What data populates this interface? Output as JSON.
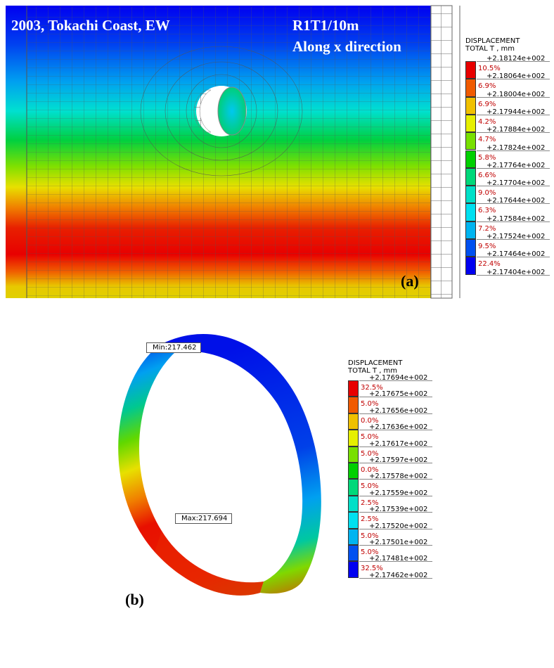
{
  "panel_a": {
    "title_left": "2003, Tokachi Coast, EW",
    "title_right_1": "R1T1/10m",
    "title_right_2": "Along x direction",
    "label": "(a)",
    "legend": {
      "heading_1": "DISPLACEMENT",
      "heading_2": "TOTAL T , mm",
      "values": [
        "+2.18124e+002",
        "+2.18064e+002",
        "+2.18004e+002",
        "+2.17944e+002",
        "+2.17884e+002",
        "+2.17824e+002",
        "+2.17764e+002",
        "+2.17704e+002",
        "+2.17644e+002",
        "+2.17584e+002",
        "+2.17524e+002",
        "+2.17464e+002",
        "+2.17404e+002"
      ],
      "percents": [
        "10.5%",
        "6.9%",
        "6.9%",
        "4.2%",
        "4.7%",
        "5.8%",
        "6.6%",
        "9.0%",
        "6.3%",
        "7.2%",
        "9.5%",
        "22.4%"
      ],
      "colors": [
        "#e80000",
        "#f05a00",
        "#f0c000",
        "#e6ef00",
        "#78e000",
        "#00d000",
        "#00d87a",
        "#00e0c8",
        "#00e0f0",
        "#00b4f0",
        "#0050f0",
        "#0000f0"
      ]
    }
  },
  "panel_b": {
    "label": "(b)",
    "min_callout": "Min:217.462",
    "max_callout": "Max:217.694",
    "legend": {
      "heading_1": "DISPLACEMENT",
      "heading_2": "TOTAL T , mm",
      "values": [
        "+2.17694e+002",
        "+2.17675e+002",
        "+2.17656e+002",
        "+2.17636e+002",
        "+2.17617e+002",
        "+2.17597e+002",
        "+2.17578e+002",
        "+2.17559e+002",
        "+2.17539e+002",
        "+2.17520e+002",
        "+2.17501e+002",
        "+2.17481e+002",
        "+2.17462e+002"
      ],
      "percents": [
        "32.5%",
        "5.0%",
        "0.0%",
        "5.0%",
        "5.0%",
        "0.0%",
        "5.0%",
        "2.5%",
        "2.5%",
        "5.0%",
        "5.0%",
        "32.5%"
      ],
      "colors": [
        "#e80000",
        "#f05a00",
        "#f0c000",
        "#e6ef00",
        "#78e000",
        "#00d000",
        "#00d87a",
        "#00e0c8",
        "#00e0f0",
        "#00b4f0",
        "#0050f0",
        "#0000f0"
      ]
    }
  }
}
